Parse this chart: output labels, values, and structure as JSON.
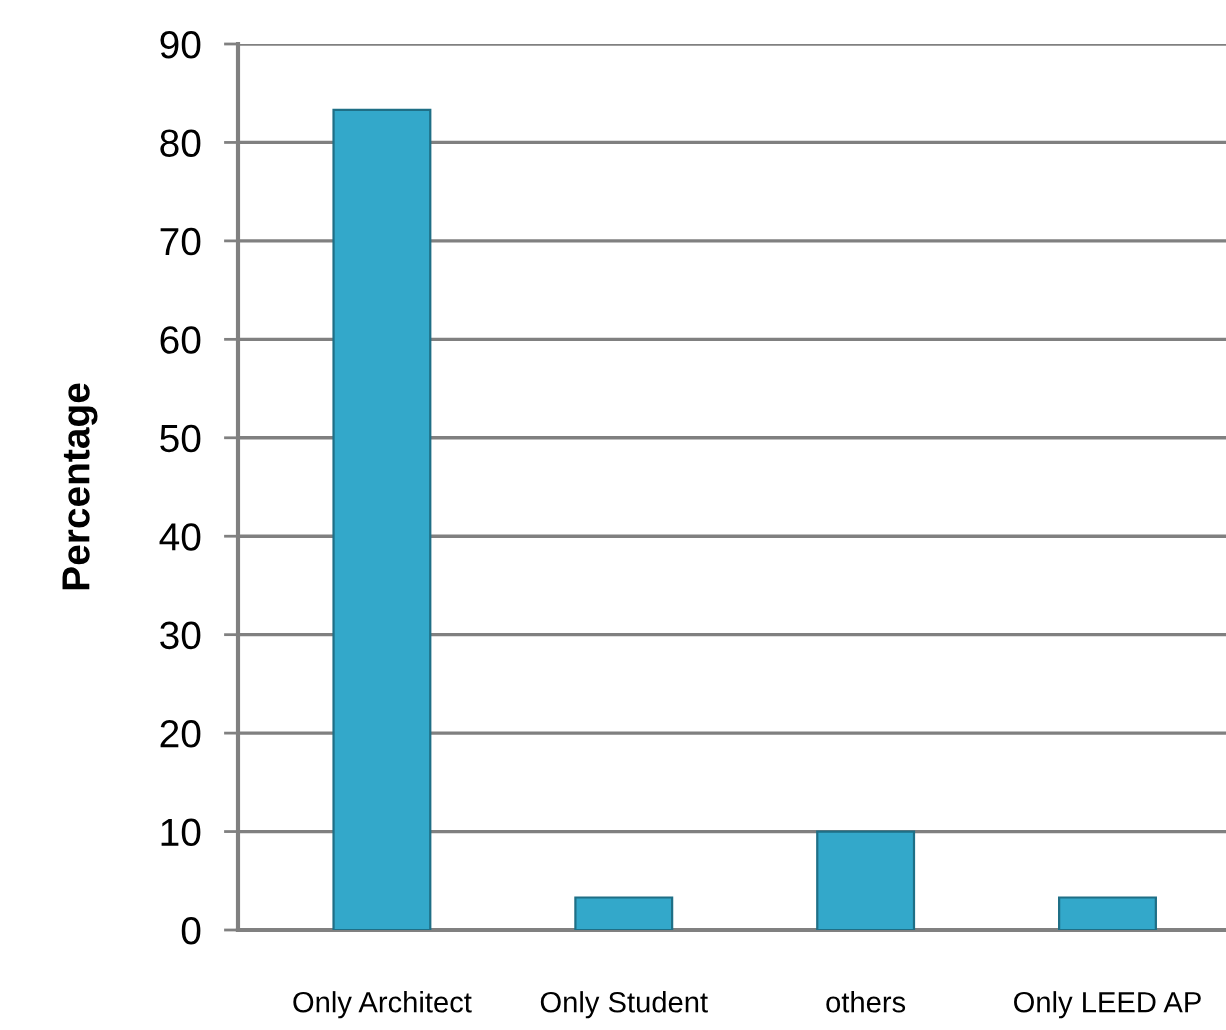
{
  "chart_data": {
    "type": "bar",
    "ylabel": "Percentage",
    "categories": [
      "Only Architect",
      "Only Student",
      "others",
      "Only LEED AP"
    ],
    "values": [
      83.3,
      3.3,
      10,
      3.3
    ],
    "color": "#33a8ca",
    "ylim": [
      0,
      90
    ],
    "yticks": [
      0,
      10,
      20,
      30,
      40,
      50,
      60,
      70,
      80,
      90
    ],
    "grid": "y"
  }
}
